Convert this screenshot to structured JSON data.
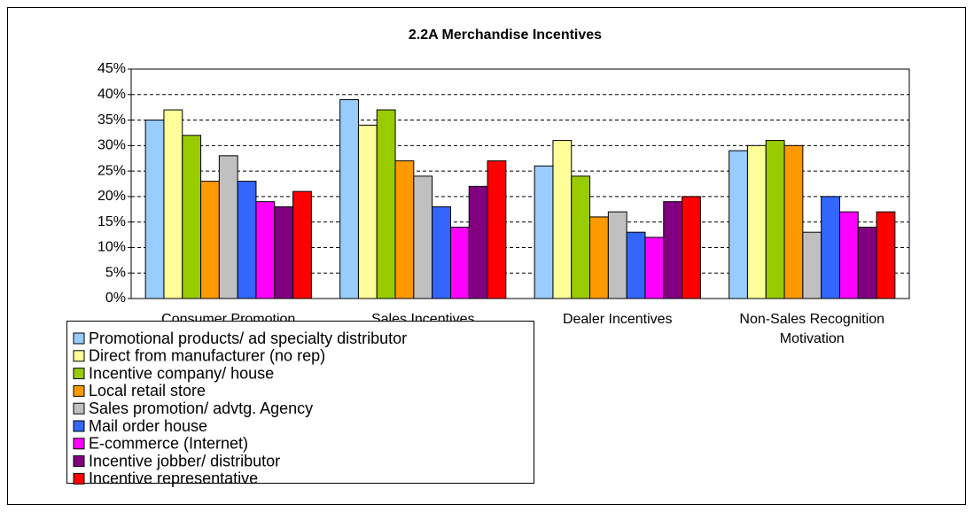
{
  "chart_data": {
    "type": "bar",
    "title": "2.2A Merchandise Incentives",
    "categories": [
      "Consumer Promotion",
      "Sales Incentives",
      "Dealer Incentives",
      "Non-Sales Recognition Motivation"
    ],
    "series": [
      {
        "name": "Promotional products/ ad specialty distributor",
        "color": "#99ccff",
        "values": [
          35,
          39,
          26,
          29
        ]
      },
      {
        "name": "Direct from manufacturer (no rep)",
        "color": "#ffff99",
        "values": [
          37,
          34,
          31,
          30
        ]
      },
      {
        "name": "Incentive company/ house",
        "color": "#99cc00",
        "values": [
          32,
          37,
          24,
          31
        ]
      },
      {
        "name": "Local retail store",
        "color": "#ff9900",
        "values": [
          23,
          27,
          16,
          30
        ]
      },
      {
        "name": "Sales promotion/ advtg. Agency",
        "color": "#c0c0c0",
        "values": [
          28,
          24,
          17,
          13
        ]
      },
      {
        "name": "Mail order house",
        "color": "#3366ff",
        "values": [
          23,
          18,
          13,
          20
        ]
      },
      {
        "name": "E-commerce (Internet)",
        "color": "#ff00ff",
        "values": [
          19,
          14,
          12,
          17
        ]
      },
      {
        "name": "Incentive jobber/ distributor",
        "color": "#800080",
        "values": [
          18,
          22,
          19,
          14
        ]
      },
      {
        "name": "Incentive representative",
        "color": "#ff0000",
        "values": [
          21,
          27,
          20,
          17
        ]
      }
    ],
    "ylim": [
      0,
      45
    ],
    "yticks": [
      {
        "value": 0,
        "label": "0%"
      },
      {
        "value": 5,
        "label": "5%"
      },
      {
        "value": 10,
        "label": "10%"
      },
      {
        "value": 15,
        "label": "15%"
      },
      {
        "value": 20,
        "label": "20%"
      },
      {
        "value": 25,
        "label": "25%"
      },
      {
        "value": 30,
        "label": "30%"
      },
      {
        "value": 35,
        "label": "35%"
      },
      {
        "value": 40,
        "label": "40%"
      },
      {
        "value": 45,
        "label": "45%"
      }
    ],
    "grid": true,
    "legend": "bottom-left"
  }
}
